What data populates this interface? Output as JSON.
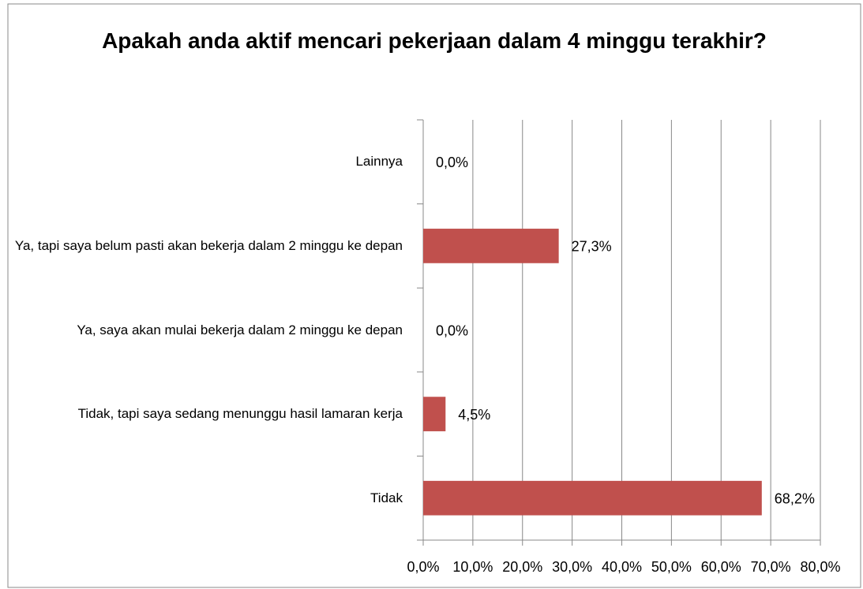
{
  "chart_data": {
    "type": "barh",
    "title": "Apakah anda aktif mencari pekerjaan dalam 4 minggu terakhir?",
    "categories": [
      "Lainnya",
      "Ya, tapi saya belum pasti akan bekerja dalam 2 minggu ke depan",
      "Ya, saya akan mulai bekerja dalam 2 minggu ke depan",
      "Tidak, tapi saya sedang menunggu hasil lamaran kerja",
      "Tidak"
    ],
    "values": [
      0,
      27.3,
      0,
      4.5,
      68.2
    ],
    "value_labels": [
      "0,0%",
      "27,3%",
      "0,0%",
      "4,5%",
      "68,2%"
    ],
    "color": "#c0504d",
    "xlim": [
      0,
      80
    ],
    "xticks": [
      {
        "value": 0,
        "label": "0,0%"
      },
      {
        "value": 10,
        "label": "10,0%"
      },
      {
        "value": 20,
        "label": "20,0%"
      },
      {
        "value": 30,
        "label": "30,0%"
      },
      {
        "value": 40,
        "label": "40,0%"
      },
      {
        "value": 50,
        "label": "50,0%"
      },
      {
        "value": 60,
        "label": "60,0%"
      },
      {
        "value": 70,
        "label": "70,0%"
      },
      {
        "value": 80,
        "label": "80,0%"
      }
    ],
    "grid": true
  }
}
